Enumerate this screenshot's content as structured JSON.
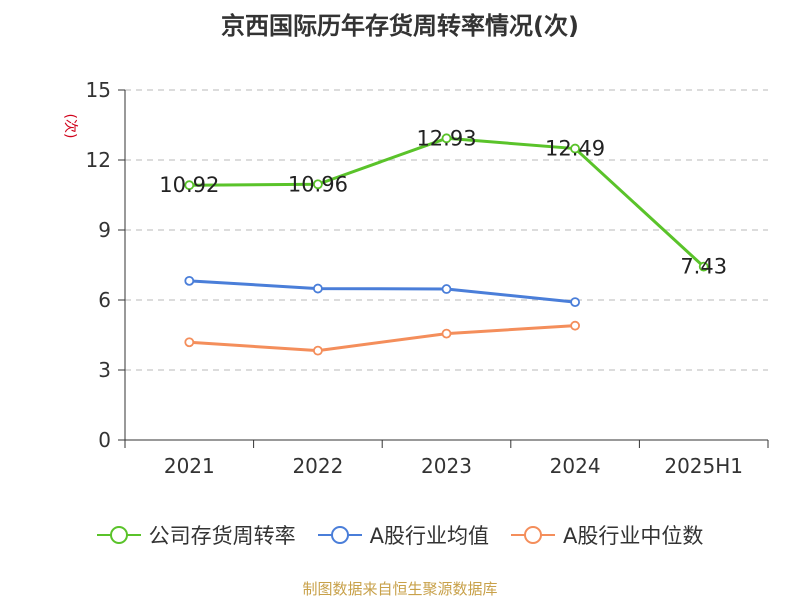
{
  "chart_data": {
    "type": "line",
    "title": "京西国际历年存货周转率情况(次)",
    "ylabel": "(次)",
    "xlabel": "",
    "categories": [
      "2021",
      "2022",
      "2023",
      "2024",
      "2025H1"
    ],
    "ylim": [
      0,
      15
    ],
    "yticks": [
      0,
      3,
      6,
      9,
      12,
      15
    ],
    "grid": true,
    "legend_position": "bottom",
    "series": [
      {
        "name": "公司存货周转率",
        "color": "#5ac32a",
        "values": [
          10.92,
          10.96,
          12.93,
          12.49,
          7.43
        ],
        "data_labels": [
          "10.92",
          "10.96",
          "12.93",
          "12.49",
          "7.43"
        ]
      },
      {
        "name": "A股行业均值",
        "color": "#4a7ed9",
        "values": [
          6.82,
          6.49,
          6.47,
          5.91,
          null
        ]
      },
      {
        "name": "A股行业中位数",
        "color": "#f48e5b",
        "values": [
          4.19,
          3.83,
          4.56,
          4.9,
          null
        ]
      }
    ]
  },
  "footer": {
    "source": "制图数据来自恒生聚源数据库"
  }
}
